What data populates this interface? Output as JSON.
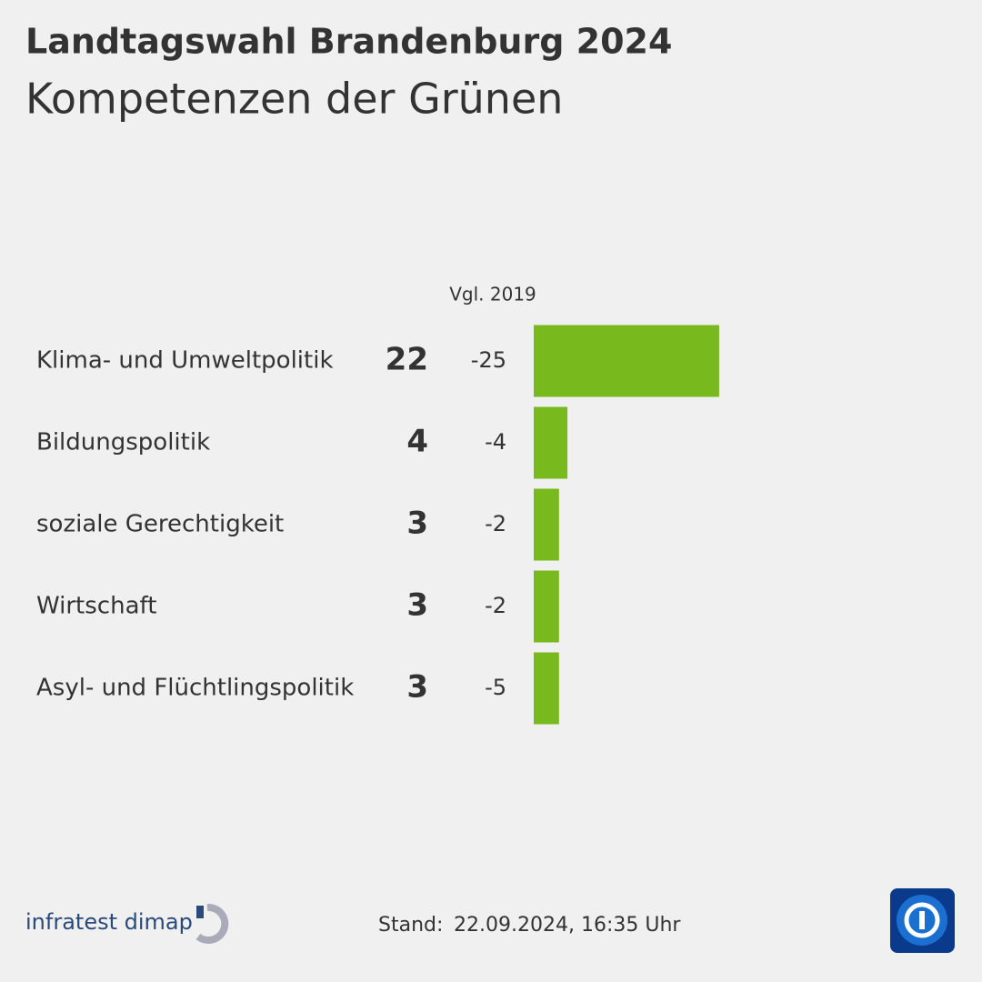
{
  "chart_data": {
    "type": "bar",
    "title": "Landtagswahl Brandenburg 2024",
    "subtitle": "Kompetenzen der Grünen",
    "categories": [
      "Klima- und Umweltpolitik",
      "Bildungspolitik",
      "soziale Gerechtigkeit",
      "Wirtschaft",
      "Asyl- und Flüchtlingspolitik"
    ],
    "values": [
      22,
      4,
      3,
      3,
      3
    ],
    "color": "#78b91e",
    "comparison_label": "Vgl. 2019",
    "comparison_values": [
      -25,
      -4,
      -2,
      -2,
      -5
    ]
  },
  "footer": {
    "source": "infratest dimap",
    "stand_label": "Stand:",
    "stand_date": "22.09.2024, 16:35 Uhr"
  }
}
